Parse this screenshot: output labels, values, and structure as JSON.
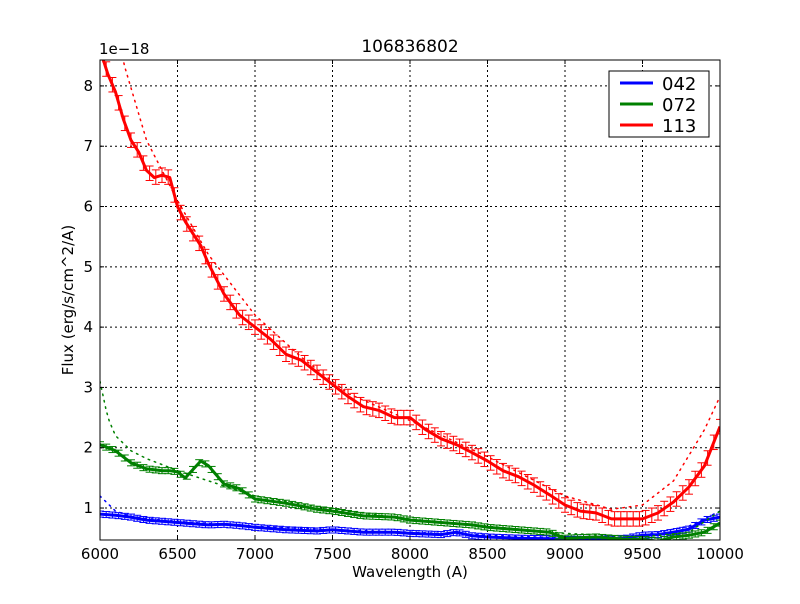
{
  "figure": {
    "title": "106836802",
    "offset_label": "1e−18",
    "xlabel": "Wavelength (A)",
    "ylabel": "Flux (erg/s/cm^2/A)"
  },
  "chart_data": {
    "type": "line",
    "title": "106836802",
    "xlabel": "Wavelength (A)",
    "ylabel": "Flux (erg/s/cm^2/A)",
    "y_scale_offset": "1e-18",
    "xlim": [
      6000,
      10000
    ],
    "ylim": [
      0.47,
      8.43
    ],
    "grid": true,
    "legend_position": "upper right",
    "x_ticks": [
      6000,
      6500,
      7000,
      7500,
      8000,
      8500,
      9000,
      9500,
      10000
    ],
    "y_ticks": [
      1,
      2,
      3,
      4,
      5,
      6,
      7,
      8
    ],
    "series": [
      {
        "name": "042",
        "color": "#0000ff",
        "x": [
          6000,
          6100,
          6200,
          6300,
          6400,
          6500,
          6600,
          6700,
          6800,
          6900,
          7000,
          7200,
          7400,
          7500,
          7700,
          7900,
          8000,
          8200,
          8300,
          8400,
          8500,
          8700,
          8900,
          9000,
          9200,
          9400,
          9500,
          9600,
          9700,
          9800,
          9900,
          10000
        ],
        "values": [
          0.9,
          0.88,
          0.85,
          0.8,
          0.78,
          0.76,
          0.74,
          0.72,
          0.73,
          0.71,
          0.68,
          0.64,
          0.62,
          0.64,
          0.6,
          0.6,
          0.58,
          0.56,
          0.6,
          0.54,
          0.52,
          0.5,
          0.49,
          0.48,
          0.48,
          0.5,
          0.55,
          0.56,
          0.6,
          0.65,
          0.8,
          0.85
        ],
        "model": {
          "x": [
            6000,
            6100,
            6200,
            6400,
            6600,
            7000,
            7500,
            8000,
            8500,
            9000,
            9500,
            9800,
            10000
          ],
          "values": [
            1.2,
            0.95,
            0.86,
            0.8,
            0.76,
            0.7,
            0.64,
            0.6,
            0.55,
            0.5,
            0.55,
            0.7,
            0.95
          ]
        }
      },
      {
        "name": "072",
        "color": "#008000",
        "x": [
          6000,
          6050,
          6100,
          6200,
          6300,
          6400,
          6450,
          6500,
          6550,
          6650,
          6700,
          6800,
          6900,
          7000,
          7200,
          7400,
          7500,
          7700,
          7900,
          8000,
          8200,
          8400,
          8500,
          8700,
          8900,
          9000,
          9200,
          9400,
          9500,
          9600,
          9700,
          9800,
          9900,
          10000
        ],
        "values": [
          2.05,
          2.0,
          1.95,
          1.75,
          1.65,
          1.62,
          1.62,
          1.6,
          1.5,
          1.78,
          1.7,
          1.4,
          1.32,
          1.15,
          1.08,
          0.98,
          0.95,
          0.87,
          0.85,
          0.8,
          0.76,
          0.72,
          0.68,
          0.64,
          0.6,
          0.5,
          0.52,
          0.48,
          0.48,
          0.45,
          0.52,
          0.55,
          0.6,
          0.75
        ],
        "model": {
          "x": [
            6000,
            6050,
            6100,
            6200,
            6300,
            6500,
            6700,
            7000,
            7500,
            8000,
            8500,
            9000,
            9500,
            9800,
            10000
          ],
          "values": [
            3.1,
            2.5,
            2.2,
            1.95,
            1.82,
            1.62,
            1.45,
            1.2,
            0.98,
            0.82,
            0.7,
            0.58,
            0.52,
            0.6,
            0.95
          ]
        }
      },
      {
        "name": "113",
        "color": "#ff0000",
        "x": [
          6000,
          6050,
          6100,
          6150,
          6200,
          6250,
          6300,
          6350,
          6400,
          6450,
          6500,
          6550,
          6600,
          6650,
          6700,
          6800,
          6900,
          7000,
          7100,
          7200,
          7300,
          7400,
          7500,
          7600,
          7700,
          7800,
          7900,
          8000,
          8100,
          8200,
          8300,
          8400,
          8500,
          8600,
          8700,
          8800,
          8900,
          9000,
          9100,
          9200,
          9300,
          9400,
          9500,
          9600,
          9700,
          9800,
          9900,
          10000
        ],
        "values": [
          8.6,
          8.2,
          7.9,
          7.45,
          7.1,
          6.9,
          6.6,
          6.48,
          6.52,
          6.48,
          6.0,
          5.75,
          5.55,
          5.35,
          5.05,
          4.55,
          4.2,
          4.0,
          3.8,
          3.55,
          3.45,
          3.25,
          3.05,
          2.85,
          2.68,
          2.62,
          2.5,
          2.5,
          2.3,
          2.15,
          2.05,
          1.92,
          1.78,
          1.62,
          1.52,
          1.38,
          1.22,
          1.05,
          0.95,
          0.92,
          0.82,
          0.82,
          0.82,
          0.92,
          1.1,
          1.35,
          1.7,
          2.35
        ],
        "model": {
          "x": [
            6000,
            6150,
            6300,
            6500,
            6700,
            7000,
            7300,
            7600,
            8000,
            8500,
            9000,
            9300,
            9500,
            9700,
            9900,
            10000
          ],
          "values": [
            10.5,
            8.4,
            7.1,
            6.1,
            5.2,
            4.2,
            3.5,
            2.9,
            2.45,
            1.85,
            1.2,
            0.98,
            1.05,
            1.45,
            2.3,
            2.85
          ]
        }
      }
    ]
  }
}
